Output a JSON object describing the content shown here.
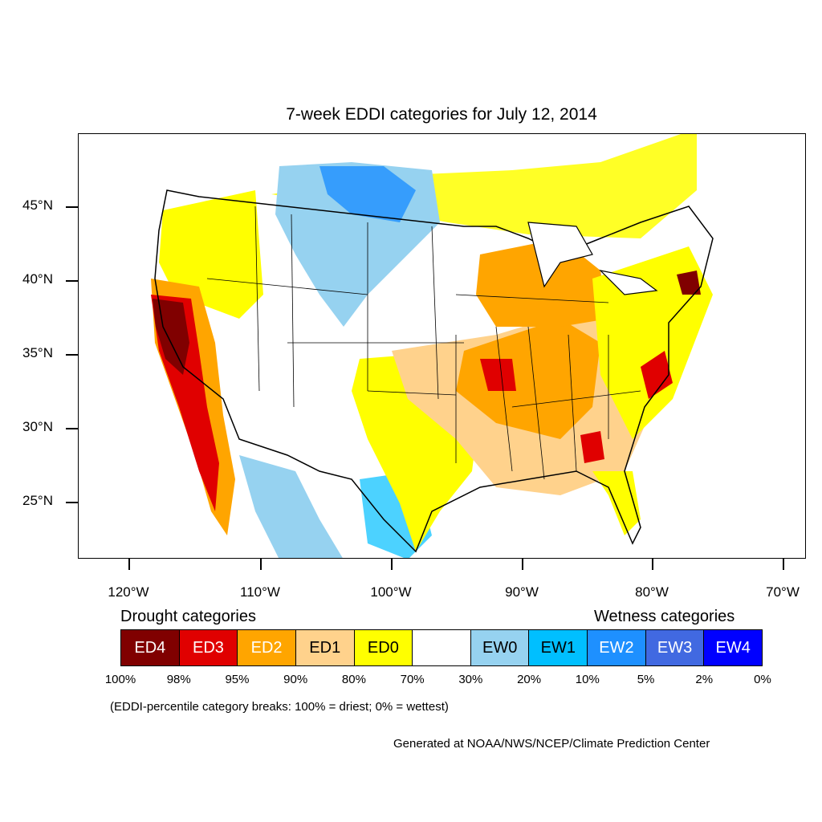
{
  "title": "7-week EDDI categories for July 12, 2014",
  "lat_labels": [
    "45°N",
    "40°N",
    "35°N",
    "30°N",
    "25°N"
  ],
  "lon_labels": [
    "120°W",
    "110°W",
    "100°W",
    "90°W",
    "80°W",
    "70°W"
  ],
  "legend": {
    "drought_heading": "Drought categories",
    "wetness_heading": "Wetness categories",
    "boxes": [
      {
        "label": "ED4",
        "color": "#800000",
        "text_color": "#ffffff"
      },
      {
        "label": "ED3",
        "color": "#e00000",
        "text_color": "#ffffff"
      },
      {
        "label": "ED2",
        "color": "#ffa500",
        "text_color": "#ffffff"
      },
      {
        "label": "ED1",
        "color": "#ffd28c",
        "text_color": "#000000"
      },
      {
        "label": "ED0",
        "color": "#ffff00",
        "text_color": "#000000"
      },
      {
        "label": "",
        "color": "#ffffff",
        "text_color": "#000000"
      },
      {
        "label": "EW0",
        "color": "#96d2f0",
        "text_color": "#000000"
      },
      {
        "label": "EW1",
        "color": "#00bfff",
        "text_color": "#000000"
      },
      {
        "label": "EW2",
        "color": "#1e90ff",
        "text_color": "#ffffff"
      },
      {
        "label": "EW3",
        "color": "#4169e1",
        "text_color": "#ffffff"
      },
      {
        "label": "EW4",
        "color": "#0000ff",
        "text_color": "#ffffff"
      }
    ],
    "percentiles": [
      "100%",
      "98%",
      "95%",
      "90%",
      "80%",
      "70%",
      "30%",
      "20%",
      "10%",
      "5%",
      "2%",
      "0%"
    ]
  },
  "note": "(EDDI-percentile category breaks: 100% = driest; 0% = wettest)",
  "credit": "Generated at NOAA/NWS/NCEP/Climate Prediction Center"
}
